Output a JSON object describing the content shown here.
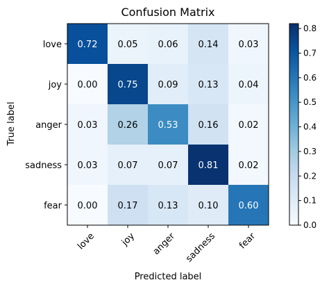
{
  "chart_data": {
    "type": "heatmap",
    "title": "Confusion Matrix",
    "xlabel": "Predicted label",
    "ylabel": "True label",
    "rows": [
      "love",
      "joy",
      "anger",
      "sadness",
      "fear"
    ],
    "columns": [
      "love",
      "joy",
      "anger",
      "sadness",
      "fear"
    ],
    "values": [
      [
        0.72,
        0.05,
        0.06,
        0.14,
        0.03
      ],
      [
        0.0,
        0.75,
        0.09,
        0.13,
        0.04
      ],
      [
        0.03,
        0.26,
        0.53,
        0.16,
        0.02
      ],
      [
        0.03,
        0.07,
        0.07,
        0.81,
        0.02
      ],
      [
        0.0,
        0.17,
        0.13,
        0.1,
        0.6
      ]
    ],
    "value_labels": [
      [
        "0.72",
        "0.05",
        "0.06",
        "0.14",
        "0.03"
      ],
      [
        "0.00",
        "0.75",
        "0.09",
        "0.13",
        "0.04"
      ],
      [
        "0.03",
        "0.26",
        "0.53",
        "0.16",
        "0.02"
      ],
      [
        "0.03",
        "0.07",
        "0.07",
        "0.81",
        "0.02"
      ],
      [
        "0.00",
        "0.17",
        "0.13",
        "0.10",
        "0.60"
      ]
    ],
    "colorbar": {
      "min": 0.0,
      "max": 0.82,
      "ticks": [
        "0.0",
        "0.1",
        "0.2",
        "0.3",
        "0.4",
        "0.5",
        "0.6",
        "0.7",
        "0.8"
      ]
    },
    "colormap": [
      "#f7fbff",
      "#deebf7",
      "#c6dbef",
      "#9ecae1",
      "#6baed6",
      "#4292c6",
      "#2171b5",
      "#08519c",
      "#08306b"
    ],
    "text_colors": {
      "dark": "#000000",
      "light": "#ffffff"
    },
    "frame_color": "#000000"
  }
}
